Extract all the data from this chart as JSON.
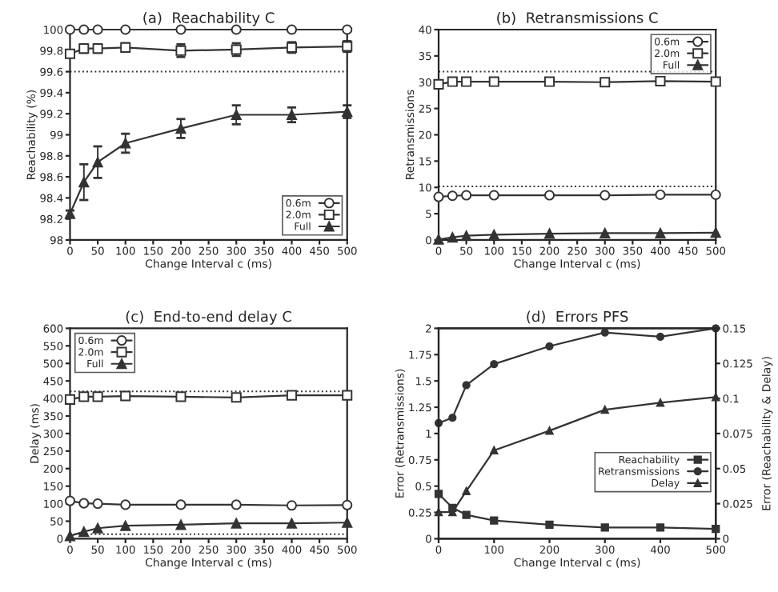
{
  "chart_data": [
    {
      "type": "line",
      "title": "(a)  Reachability C",
      "xlabel": "Change Interval c (ms)",
      "ylabel": "Reachability (%)",
      "x": [
        0,
        25,
        50,
        100,
        200,
        300,
        400,
        500
      ],
      "series": [
        {
          "name": "0.6m",
          "color": "#333333",
          "marker": "circle",
          "values": [
            100,
            100,
            100,
            100,
            100,
            100,
            100,
            100
          ]
        },
        {
          "name": "2.0m",
          "color": "#333333",
          "marker": "square",
          "values": [
            99.77,
            99.82,
            99.82,
            99.83,
            99.8,
            99.81,
            99.83,
            99.84
          ],
          "errors": [
            0.03,
            0.04,
            0.04,
            0.04,
            0.06,
            0.06,
            0.05,
            0.05
          ]
        },
        {
          "name": "Full",
          "color": "#333333",
          "marker": "triangle",
          "values": [
            98.25,
            98.55,
            98.74,
            98.92,
            99.06,
            99.19,
            99.19,
            99.22
          ],
          "errors": [
            0.03,
            0.17,
            0.15,
            0.09,
            0.09,
            0.09,
            0.07,
            0.06
          ]
        }
      ],
      "ref_lines": [
        {
          "axis": "y",
          "value": 99.6,
          "line_style": "dotted",
          "color": "#333333"
        }
      ],
      "xlim": [
        0,
        500
      ],
      "xticks": [
        0,
        50,
        100,
        150,
        200,
        250,
        300,
        350,
        400,
        450,
        500
      ],
      "ylim": [
        98,
        100
      ],
      "yticks": [
        98,
        98.2,
        98.4,
        98.6,
        98.8,
        99,
        99.2,
        99.4,
        99.6,
        99.8,
        100
      ],
      "legend": "bottom right",
      "grid": false
    },
    {
      "type": "line",
      "title": "(b)  Retransmissions C",
      "xlabel": "Change Interval c (ms)",
      "ylabel": "Retransmissions",
      "x": [
        0,
        25,
        50,
        100,
        200,
        300,
        400,
        500
      ],
      "series": [
        {
          "name": "0.6m",
          "color": "#333333",
          "marker": "circle",
          "values": [
            8.2,
            8.4,
            8.5,
            8.5,
            8.5,
            8.5,
            8.6,
            8.6
          ]
        },
        {
          "name": "2.0m",
          "color": "#333333",
          "marker": "square",
          "values": [
            29.6,
            30.1,
            30.1,
            30.1,
            30.1,
            30.0,
            30.2,
            30.1
          ]
        },
        {
          "name": "Full",
          "color": "#333333",
          "marker": "triangle",
          "values": [
            0.1,
            0.5,
            0.8,
            1.0,
            1.2,
            1.3,
            1.3,
            1.4
          ]
        }
      ],
      "ref_lines": [
        {
          "axis": "y",
          "value": 32,
          "line_style": "dotted",
          "color": "#333333"
        },
        {
          "axis": "y",
          "value": 10.2,
          "line_style": "dotted",
          "color": "#333333"
        }
      ],
      "xlim": [
        0,
        500
      ],
      "xticks": [
        0,
        50,
        100,
        150,
        200,
        250,
        300,
        350,
        400,
        450,
        500
      ],
      "ylim": [
        0,
        40
      ],
      "yticks": [
        0,
        5,
        10,
        15,
        20,
        25,
        30,
        35,
        40
      ],
      "legend": "top right",
      "grid": false
    },
    {
      "type": "line",
      "title": "(c)  End-to-end delay C",
      "xlabel": "Change Interval c (ms)",
      "ylabel": "Delay (ms)",
      "x": [
        0,
        25,
        50,
        100,
        200,
        300,
        400,
        500
      ],
      "series": [
        {
          "name": "0.6m",
          "color": "#333333",
          "marker": "circle",
          "values": [
            108,
            101,
            100,
            97,
            97,
            97,
            95,
            96
          ]
        },
        {
          "name": "2.0m",
          "color": "#333333",
          "marker": "square",
          "values": [
            397,
            405,
            405,
            407,
            405,
            403,
            409,
            409
          ]
        },
        {
          "name": "Full",
          "color": "#333333",
          "marker": "triangle",
          "values": [
            8,
            20,
            30,
            37,
            40,
            44,
            44,
            46
          ]
        }
      ],
      "ref_lines": [
        {
          "axis": "y",
          "value": 420,
          "line_style": "dotted",
          "color": "#333333"
        },
        {
          "axis": "y",
          "value": 13,
          "line_style": "dotted",
          "color": "#333333"
        }
      ],
      "xlim": [
        0,
        500
      ],
      "xticks": [
        0,
        50,
        100,
        150,
        200,
        250,
        300,
        350,
        400,
        450,
        500
      ],
      "ylim": [
        0,
        600
      ],
      "yticks": [
        0,
        50,
        100,
        150,
        200,
        250,
        300,
        350,
        400,
        450,
        500,
        550,
        600
      ],
      "legend": "top left",
      "grid": false
    },
    {
      "type": "line",
      "title": "(d)  Errors PFS",
      "xlabel": "Change Interval c (ms)",
      "ylabel": "Error (Retransmissions)",
      "y2label": "Error (Reachability & Delay)",
      "x": [
        0,
        25,
        50,
        100,
        200,
        300,
        400,
        500
      ],
      "series": [
        {
          "name": "Reachability",
          "color": "#333333",
          "marker": "square",
          "axis": "y2",
          "values": [
            0.032,
            0.022,
            0.017,
            0.013,
            0.01,
            0.008,
            0.008,
            0.007
          ]
        },
        {
          "name": "Retransmissions",
          "color": "#333333",
          "marker": "circle",
          "values": [
            1.1,
            1.15,
            1.46,
            1.66,
            1.83,
            1.96,
            1.92,
            2.0
          ]
        },
        {
          "name": "Delay",
          "color": "#333333",
          "marker": "triangle",
          "axis": "y2",
          "values": [
            0.019,
            0.019,
            0.034,
            0.063,
            0.077,
            0.092,
            0.097,
            0.101
          ]
        }
      ],
      "xlim": [
        0,
        500
      ],
      "xticks": [
        0,
        100,
        200,
        300,
        400,
        500
      ],
      "ylim": [
        0,
        2
      ],
      "yticks": [
        0,
        0.25,
        0.5,
        0.75,
        1,
        1.25,
        1.5,
        1.75,
        2
      ],
      "y2lim": [
        0,
        0.15
      ],
      "y2ticks": [
        0,
        0.025,
        0.05,
        0.075,
        0.1,
        0.125,
        0.15
      ],
      "legend": "bottom right",
      "grid": false
    }
  ]
}
